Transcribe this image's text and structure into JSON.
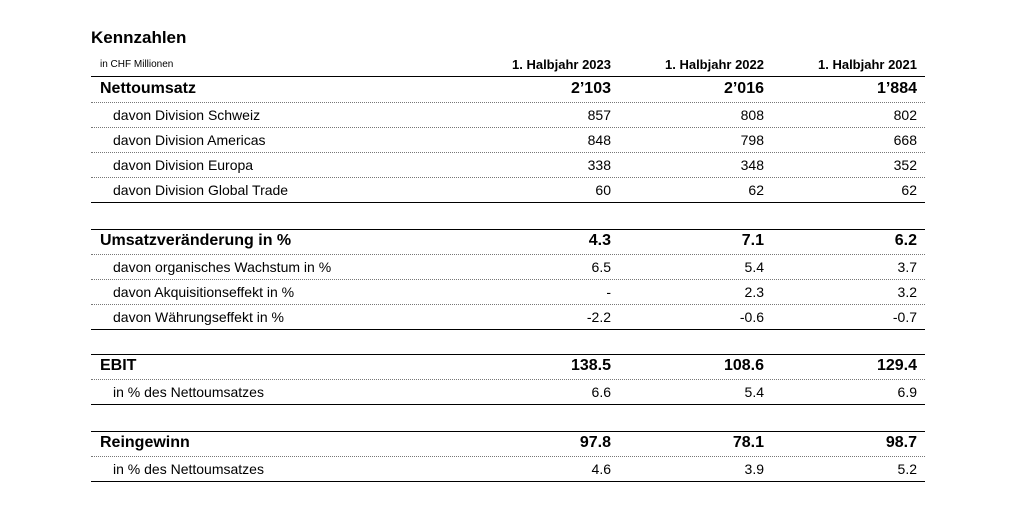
{
  "title": "Kennzahlen",
  "unit": "in CHF Millionen",
  "columns": [
    "1. Halbjahr 2023",
    "1. Halbjahr 2022",
    "1. Halbjahr 2021"
  ],
  "sections": [
    {
      "rows": [
        {
          "label": "Nettoumsatz",
          "main": true,
          "values": [
            "2’103",
            "2’016",
            "1’884"
          ]
        },
        {
          "label": "davon Division Schweiz",
          "values": [
            "857",
            "808",
            "802"
          ]
        },
        {
          "label": "davon Division Americas",
          "values": [
            "848",
            "798",
            "668"
          ]
        },
        {
          "label": "davon Division Europa",
          "values": [
            "338",
            "348",
            "352"
          ]
        },
        {
          "label": "davon Division Global Trade",
          "values": [
            "60",
            "62",
            "62"
          ]
        }
      ]
    },
    {
      "rows": [
        {
          "label": "Umsatzveränderung in %",
          "main": true,
          "values": [
            "4.3",
            "7.1",
            "6.2"
          ]
        },
        {
          "label": "davon organisches Wachstum in %",
          "values": [
            "6.5",
            "5.4",
            "3.7"
          ]
        },
        {
          "label": "davon Akquisitionseffekt in %",
          "values": [
            "-",
            "2.3",
            "3.2"
          ]
        },
        {
          "label": "davon Währungseffekt in %",
          "values": [
            "-2.2",
            "-0.6",
            "-0.7"
          ]
        }
      ]
    },
    {
      "rows": [
        {
          "label": "EBIT",
          "main": true,
          "values": [
            "138.5",
            "108.6",
            "129.4"
          ]
        },
        {
          "label": "in % des Nettoumsatzes",
          "values": [
            "6.6",
            "5.4",
            "6.9"
          ]
        }
      ]
    },
    {
      "rows": [
        {
          "label": "Reingewinn",
          "main": true,
          "values": [
            "97.8",
            "78.1",
            "98.7"
          ]
        },
        {
          "label": "in % des Nettoumsatzes",
          "values": [
            "4.6",
            "3.9",
            "5.2"
          ]
        }
      ]
    }
  ]
}
